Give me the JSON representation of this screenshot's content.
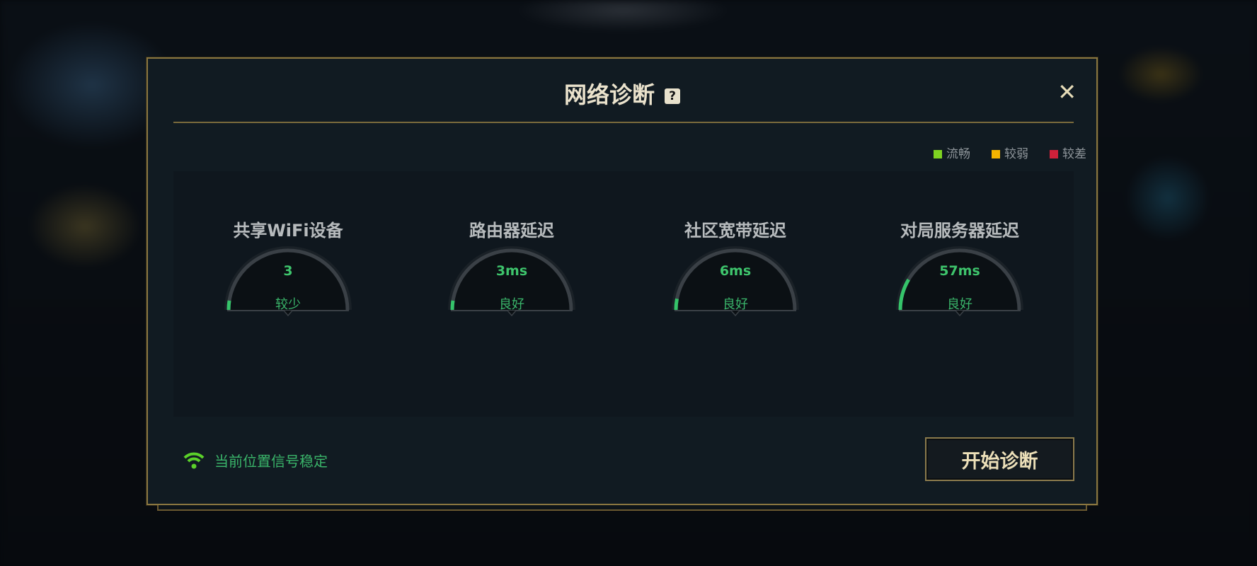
{
  "dialog": {
    "title": "网络诊断",
    "help_icon": "?",
    "close_icon": "✕"
  },
  "legend": [
    {
      "label": "流畅",
      "color": "#7ed321"
    },
    {
      "label": "较弱",
      "color": "#f5b400"
    },
    {
      "label": "较差",
      "color": "#d0213a"
    }
  ],
  "metrics": [
    {
      "title": "共享WiFi设备",
      "value": "3",
      "status": "较少",
      "level": 0.05
    },
    {
      "title": "路由器延迟",
      "value": "3ms",
      "status": "良好",
      "level": 0.05
    },
    {
      "title": "社区宽带延迟",
      "value": "6ms",
      "status": "良好",
      "level": 0.06
    },
    {
      "title": "对局服务器延迟",
      "value": "57ms",
      "status": "良好",
      "level": 0.17
    }
  ],
  "gauge_color": "#35c46a",
  "footer": {
    "signal_text": "当前位置信号稳定",
    "signal_icon": "wifi-icon"
  },
  "button": {
    "label": "开始诊断"
  }
}
